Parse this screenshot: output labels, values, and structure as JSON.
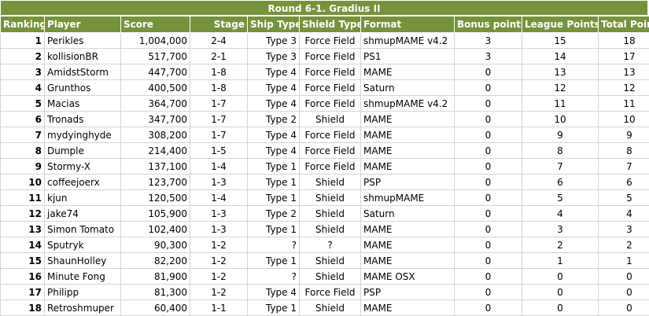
{
  "title": "Round 6-1.    Gradius II",
  "headers": {
    "ranking": "Ranking",
    "player": "Player",
    "score": "Score",
    "stage": "Stage",
    "ship_type": "Ship Type",
    "shield_type": "Shield Type",
    "format": "Format",
    "bonus_points": "Bonus points",
    "league_points": "League Points",
    "total_points": "Total Points"
  },
  "rows": [
    {
      "rank": "1",
      "player": "Perikles",
      "score": "1,004,000",
      "stage": "2-4",
      "ship": "Type 3",
      "shield": "Force Field",
      "format": "shmupMAME v4.2",
      "bonus": "3",
      "league": "15",
      "total": "18"
    },
    {
      "rank": "2",
      "player": "kollisionBR",
      "score": "517,700",
      "stage": "2-1",
      "ship": "Type 3",
      "shield": "Force Field",
      "format": "PS1",
      "bonus": "3",
      "league": "14",
      "total": "17"
    },
    {
      "rank": "3",
      "player": "AmidstStorm",
      "score": "447,700",
      "stage": "1-8",
      "ship": "Type 4",
      "shield": "Force Field",
      "format": "MAME",
      "bonus": "0",
      "league": "13",
      "total": "13"
    },
    {
      "rank": "4",
      "player": "Grunthos",
      "score": "400,500",
      "stage": "1-8",
      "ship": "Type 4",
      "shield": "Force Field",
      "format": "Saturn",
      "bonus": "0",
      "league": "12",
      "total": "12"
    },
    {
      "rank": "5",
      "player": "Macias",
      "score": "364,700",
      "stage": "1-7",
      "ship": "Type 4",
      "shield": "Force Field",
      "format": "shmupMAME v4.2",
      "bonus": "0",
      "league": "11",
      "total": "11"
    },
    {
      "rank": "6",
      "player": "Tronads",
      "score": "347,700",
      "stage": "1-7",
      "ship": "Type 2",
      "shield": "Shield",
      "format": "MAME",
      "bonus": "0",
      "league": "10",
      "total": "10"
    },
    {
      "rank": "7",
      "player": "mydyinghyde",
      "score": "308,200",
      "stage": "1-7",
      "ship": "Type 4",
      "shield": "Force Field",
      "format": "MAME",
      "bonus": "0",
      "league": "9",
      "total": "9"
    },
    {
      "rank": "8",
      "player": "Dumple",
      "score": "214,400",
      "stage": "1-5",
      "ship": "Type 4",
      "shield": "Force Field",
      "format": "MAME",
      "bonus": "0",
      "league": "8",
      "total": "8"
    },
    {
      "rank": "9",
      "player": "Stormy-X",
      "score": "137,100",
      "stage": "1-4",
      "ship": "Type 1",
      "shield": "Force Field",
      "format": "MAME",
      "bonus": "0",
      "league": "7",
      "total": "7"
    },
    {
      "rank": "10",
      "player": "coffeejoerx",
      "score": "123,700",
      "stage": "1-3",
      "ship": "Type 1",
      "shield": "Shield",
      "format": "PSP",
      "bonus": "0",
      "league": "6",
      "total": "6"
    },
    {
      "rank": "11",
      "player": "kjun",
      "score": "120,500",
      "stage": "1-4",
      "ship": "Type 1",
      "shield": "Shield",
      "format": "shmupMAME",
      "bonus": "0",
      "league": "5",
      "total": "5"
    },
    {
      "rank": "12",
      "player": "jake74",
      "score": "105,900",
      "stage": "1-3",
      "ship": "Type 2",
      "shield": "Shield",
      "format": "Saturn",
      "bonus": "0",
      "league": "4",
      "total": "4"
    },
    {
      "rank": "13",
      "player": "Simon Tomato",
      "score": "102,400",
      "stage": "1-3",
      "ship": "Type 1",
      "shield": "Shield",
      "format": "MAME",
      "bonus": "0",
      "league": "3",
      "total": "3"
    },
    {
      "rank": "14",
      "player": "Sputryk",
      "score": "90,300",
      "stage": "1-2",
      "ship": "?",
      "shield": "?",
      "format": "MAME",
      "bonus": "0",
      "league": "2",
      "total": "2"
    },
    {
      "rank": "15",
      "player": "ShaunHolley",
      "score": "82,200",
      "stage": "1-2",
      "ship": "Type 1",
      "shield": "Shield",
      "format": "MAME",
      "bonus": "0",
      "league": "1",
      "total": "1"
    },
    {
      "rank": "16",
      "player": "Minute Fong",
      "score": "81,900",
      "stage": "1-2",
      "ship": "?",
      "shield": "Shield",
      "format": "MAME OSX",
      "bonus": "0",
      "league": "0",
      "total": "0"
    },
    {
      "rank": "17",
      "player": "Philipp",
      "score": "81,300",
      "stage": "1-2",
      "ship": "Type 4",
      "shield": "Force Field",
      "format": "PSP",
      "bonus": "0",
      "league": "0",
      "total": "0"
    },
    {
      "rank": "18",
      "player": "Retroshmuper",
      "score": "60,400",
      "stage": "1-1",
      "ship": "Type 1",
      "shield": "Shield",
      "format": "MAME",
      "bonus": "0",
      "league": "0",
      "total": "0"
    }
  ]
}
